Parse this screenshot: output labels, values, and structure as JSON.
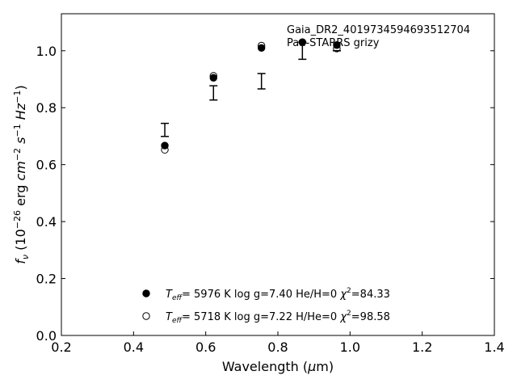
{
  "chart_data": {
    "type": "scatter",
    "title": "",
    "xlabel": "Wavelength (μm)",
    "ylabel": "f_ν (10^-26 erg cm^-2 s^-1 Hz^-1)",
    "xlim": [
      0.2,
      1.4
    ],
    "ylim": [
      0.0,
      1.13
    ],
    "xticks": [
      0.2,
      0.4,
      0.6,
      0.8,
      1.0,
      1.2,
      1.4
    ],
    "xtick_labels": [
      "0.2",
      "0.4",
      "0.6",
      "0.8",
      "1.0",
      "1.2",
      "1.4"
    ],
    "yticks": [
      0.0,
      0.2,
      0.4,
      0.6,
      0.8,
      1.0
    ],
    "ytick_labels": [
      "0.0",
      "0.2",
      "0.4",
      "0.6",
      "0.8",
      "1.0"
    ],
    "grid": false,
    "annotations": [
      "Gaia_DR2_4019734594693512704",
      "Pan-STARRS grizy"
    ],
    "observed": {
      "x": [
        0.4866,
        0.6215,
        0.7545,
        0.8679,
        0.9633
      ],
      "y": [
        0.722,
        0.852,
        0.893,
        1.0,
        1.0
      ],
      "yerr": [
        0.023,
        0.025,
        0.027,
        0.03,
        0.0
      ]
    },
    "series": [
      {
        "marker": "filled-circle",
        "label_teff": "5976 K",
        "label_logg": "log g=7.40",
        "label_comp": "He/H=0",
        "label_chi2": "=84.33",
        "x": [
          0.4866,
          0.6215,
          0.7545,
          0.8679,
          0.9633
        ],
        "y": [
          0.667,
          0.905,
          1.01,
          1.03,
          1.02
        ]
      },
      {
        "marker": "open-circle",
        "label_teff": "5718 K",
        "label_logg": "log g=7.22",
        "label_comp": "H/He=0",
        "label_chi2": "=98.58",
        "x": [
          0.4866,
          0.6215,
          0.7545,
          0.8679,
          0.9633
        ],
        "y": [
          0.652,
          0.912,
          1.018,
          1.03,
          1.008
        ]
      }
    ],
    "legend_placement": "lower-center"
  }
}
